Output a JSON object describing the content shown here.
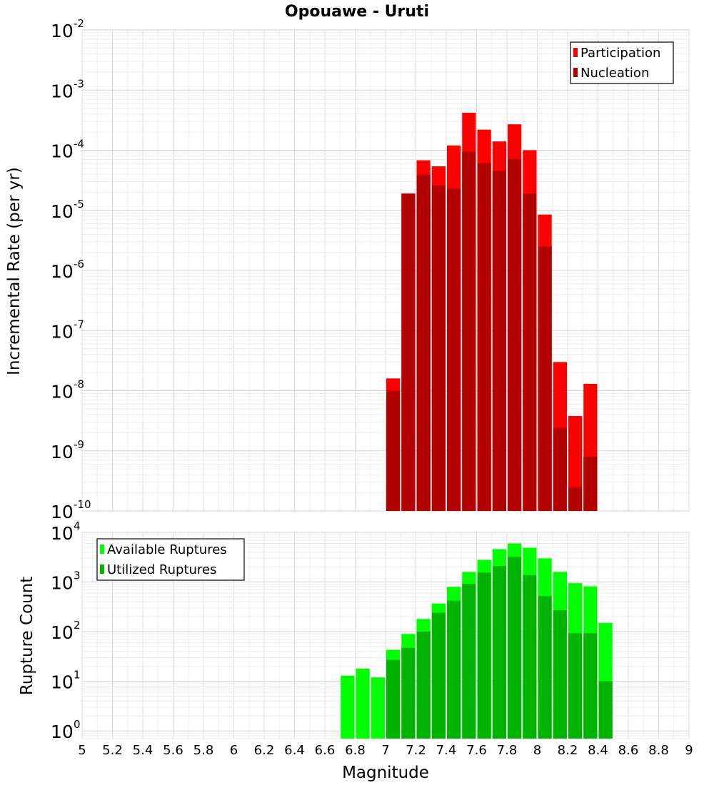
{
  "chart_data": [
    {
      "type": "bar",
      "title": "Opouawe - Uruti",
      "xlabel": "Magnitude",
      "ylabel": "Incremental Rate (per yr)",
      "xlim": [
        5,
        9
      ],
      "ylim": [
        1e-10,
        0.01
      ],
      "yscale": "log",
      "bin_width": 0.1,
      "grid": true,
      "legend_position": "top-right",
      "y_tick_labels": [
        {
          "base": "10",
          "exp": "-10",
          "value": 1e-10
        },
        {
          "base": "10",
          "exp": "-9",
          "value": 1e-09
        },
        {
          "base": "10",
          "exp": "-8",
          "value": 1e-08
        },
        {
          "base": "10",
          "exp": "-7",
          "value": 1e-07
        },
        {
          "base": "10",
          "exp": "-6",
          "value": 1e-06
        },
        {
          "base": "10",
          "exp": "-5",
          "value": 1e-05
        },
        {
          "base": "10",
          "exp": "-4",
          "value": 0.0001
        },
        {
          "base": "10",
          "exp": "-3",
          "value": 0.001
        },
        {
          "base": "10",
          "exp": "-2",
          "value": 0.01
        }
      ],
      "series": [
        {
          "name": "Participation",
          "color": "#ff0000",
          "x": [
            7.05,
            7.15,
            7.25,
            7.35,
            7.45,
            7.55,
            7.65,
            7.75,
            7.85,
            7.95,
            8.05,
            8.15,
            8.25,
            8.35
          ],
          "values": [
            1.6e-08,
            1.9e-05,
            6.8e-05,
            5.4e-05,
            0.00012,
            0.00042,
            0.00022,
            0.00014,
            0.00027,
            0.0001,
            8.5e-06,
            3e-08,
            3.8e-09,
            1.3e-08
          ]
        },
        {
          "name": "Nucleation",
          "color": "#b30000",
          "x": [
            7.05,
            7.15,
            7.25,
            7.35,
            7.45,
            7.55,
            7.65,
            7.75,
            7.85,
            7.95,
            8.05,
            8.15,
            8.25,
            8.35
          ],
          "values": [
            1e-08,
            1.9e-05,
            3.9e-05,
            2.6e-05,
            2.3e-05,
            9.5e-05,
            6.1e-05,
            4.5e-05,
            7.1e-05,
            1.9e-05,
            2.5e-06,
            2.4e-09,
            2.5e-10,
            8e-10
          ]
        }
      ]
    },
    {
      "type": "bar",
      "title": "",
      "xlabel": "Magnitude",
      "ylabel": "Rupture Count",
      "xlim": [
        5,
        9
      ],
      "ylim": [
        0.7,
        10000
      ],
      "yscale": "log",
      "bin_width": 0.1,
      "grid": true,
      "legend_position": "top-left",
      "y_tick_labels": [
        {
          "base": "10",
          "exp": "0",
          "value": 1
        },
        {
          "base": "10",
          "exp": "1",
          "value": 10
        },
        {
          "base": "10",
          "exp": "2",
          "value": 100
        },
        {
          "base": "10",
          "exp": "3",
          "value": 1000
        },
        {
          "base": "10",
          "exp": "4",
          "value": 10000
        }
      ],
      "x_tick_labels": [
        "5",
        "5.2",
        "5.4",
        "5.6",
        "5.8",
        "6",
        "6.2",
        "6.4",
        "6.6",
        "6.8",
        "7",
        "7.2",
        "7.4",
        "7.6",
        "7.8",
        "8",
        "8.2",
        "8.4",
        "8.6",
        "8.8",
        "9"
      ],
      "series": [
        {
          "name": "Available Ruptures",
          "color": "#00ff00",
          "x": [
            6.75,
            6.85,
            6.95,
            7.05,
            7.15,
            7.25,
            7.35,
            7.45,
            7.55,
            7.65,
            7.75,
            7.85,
            7.95,
            8.05,
            8.15,
            8.25,
            8.35,
            8.45
          ],
          "values": [
            13,
            18,
            12,
            43,
            90,
            180,
            370,
            800,
            1600,
            2800,
            4600,
            6000,
            4900,
            3000,
            1600,
            950,
            820,
            150
          ]
        },
        {
          "name": "Utilized Ruptures",
          "color": "#00b300",
          "x": [
            6.75,
            6.85,
            6.95,
            7.05,
            7.15,
            7.25,
            7.35,
            7.45,
            7.55,
            7.65,
            7.75,
            7.85,
            7.95,
            8.05,
            8.15,
            8.25,
            8.35,
            8.45
          ],
          "values": [
            0,
            0,
            0,
            27,
            47,
            100,
            240,
            420,
            920,
            1550,
            2100,
            3200,
            1380,
            520,
            270,
            93,
            93,
            10
          ]
        }
      ]
    }
  ]
}
